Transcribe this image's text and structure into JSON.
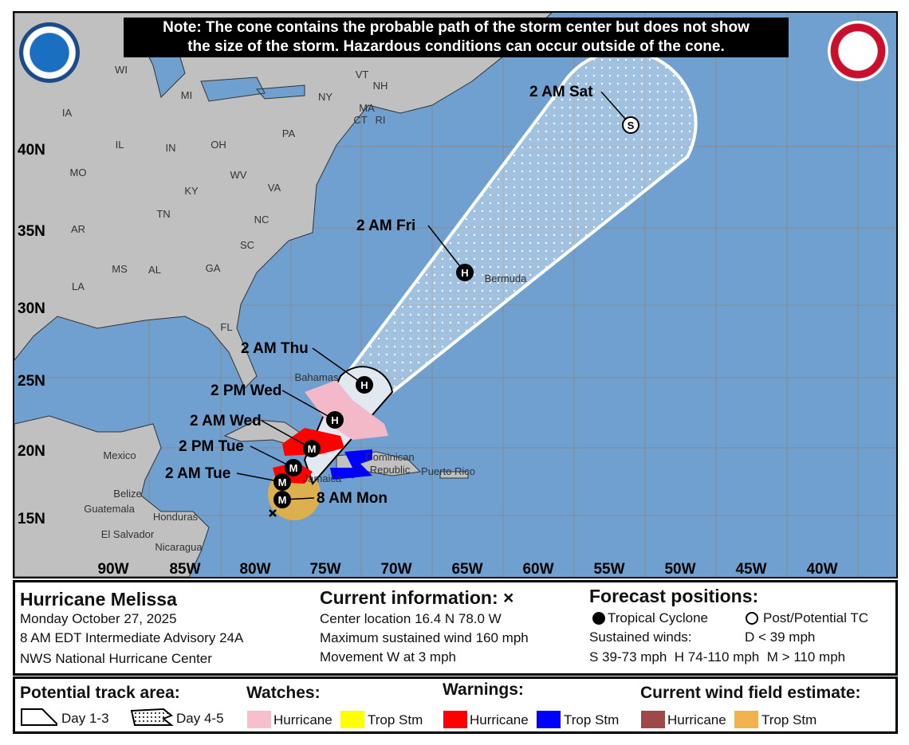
{
  "note": {
    "line1": "Note: The cone contains the probable path of the storm center but does not show",
    "line2": "the size of the storm. Hazardous conditions can occur outside of the cone."
  },
  "logos": {
    "left": "NOAA",
    "right": "NATIONAL WEATHER SERVICE"
  },
  "map": {
    "lon_labels": [
      "90W",
      "85W",
      "80W",
      "75W",
      "70W",
      "65W",
      "60W",
      "55W",
      "50W",
      "45W",
      "40W"
    ],
    "lat_labels": [
      "40N",
      "35N",
      "30N",
      "25N",
      "20N",
      "15N"
    ],
    "place_labels": [
      "WI",
      "MI",
      "NY",
      "VT",
      "NH",
      "MA",
      "CT",
      "RI",
      "IA",
      "IL",
      "IN",
      "OH",
      "PA",
      "MO",
      "KY",
      "WV",
      "VA",
      "TN",
      "NC",
      "AR",
      "SC",
      "MS",
      "AL",
      "GA",
      "LA",
      "FL",
      "Mexico",
      "Belize",
      "Guatemala",
      "Honduras",
      "El Salvador",
      "Nicaragua",
      "Bahamas",
      "Dominican",
      "Republic",
      "Puerto Rico",
      "Jamaica",
      "Bermuda"
    ],
    "forecast_points": [
      {
        "label": "8 AM Mon",
        "symbol": "M"
      },
      {
        "label": "2 AM Tue",
        "symbol": "M"
      },
      {
        "label": "2 PM Tue",
        "symbol": "M"
      },
      {
        "label": "2 AM Wed",
        "symbol": "M"
      },
      {
        "label": "2 PM Wed",
        "symbol": "H"
      },
      {
        "label": "2 AM Thu",
        "symbol": "H"
      },
      {
        "label": "2 AM Fri",
        "symbol": "H"
      },
      {
        "label": "2 AM Sat",
        "symbol": "S"
      }
    ],
    "colors": {
      "ocean": "#6fa0cf",
      "land": "#c0c0c0",
      "hurricane_watch": "#f4b9c9",
      "hurricane_warning": "#ff0000",
      "trop_storm_warning": "#0000ff",
      "trop_storm_wind_field": "#e8b040"
    }
  },
  "info": {
    "storm_name": "Hurricane Melissa",
    "date": "Monday October 27, 2025",
    "advisory": "8 AM EDT Intermediate Advisory 24A",
    "center": "NWS National Hurricane Center",
    "current_title": "Current information: ×",
    "location": "Center location 16.4 N 78.0 W",
    "max_wind": "Maximum sustained wind 160 mph",
    "movement": "Movement W at 3 mph",
    "forecast_title": "Forecast positions:",
    "tc": "Tropical Cyclone",
    "ptc": "Post/Potential TC",
    "sustained": "Sustained winds:",
    "d": "D < 39 mph",
    "shm": "S 39-73 mph  H 74-110 mph  M > 110 mph"
  },
  "legend": {
    "track_title": "Potential track area:",
    "day13": "Day 1-3",
    "day45": "Day 4-5",
    "watches_title": "Watches:",
    "warnings_title": "Warnings:",
    "wind_title": "Current wind field estimate:",
    "hurricane": "Hurricane",
    "trop_stm": "Trop Stm",
    "colors": {
      "watch_hurricane": "#f7bfcb",
      "watch_ts": "#ffff00",
      "warn_hurricane": "#ff0000",
      "warn_ts": "#0000ff",
      "wind_hurricane": "#a04848",
      "wind_ts": "#f2b24c"
    }
  }
}
